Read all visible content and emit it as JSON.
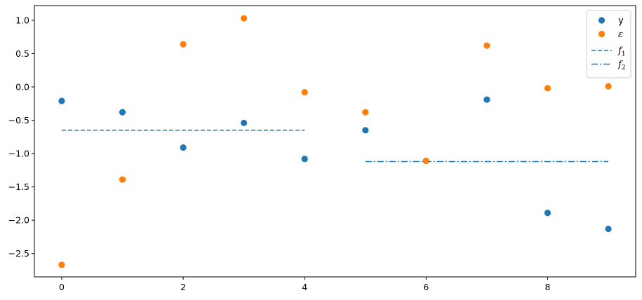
{
  "chart_data": {
    "type": "scatter",
    "title": "",
    "xlabel": "",
    "ylabel": "",
    "xlim": [
      -0.45,
      9.45
    ],
    "ylim": [
      -2.85,
      1.22
    ],
    "xticks": [
      0,
      2,
      4,
      6,
      8
    ],
    "yticks": [
      1.0,
      0.5,
      0.0,
      -0.5,
      -1.0,
      -1.5,
      -2.0,
      -2.5
    ],
    "xtick_labels": [
      "0",
      "2",
      "4",
      "6",
      "8"
    ],
    "ytick_labels": [
      "1.0",
      "0.5",
      "0.0",
      "−0.5",
      "−1.0",
      "−1.5",
      "−2.0",
      "−2.5"
    ],
    "grid": false,
    "legend_position": "top-right",
    "series": [
      {
        "name": "y",
        "kind": "scatter",
        "color": "#1f77b4",
        "x": [
          0,
          1,
          2,
          3,
          4,
          5,
          6,
          7,
          8,
          9
        ],
        "y": [
          -0.21,
          -0.38,
          -0.91,
          -0.54,
          -1.08,
          -0.65,
          -1.11,
          -0.19,
          -1.89,
          -2.13
        ]
      },
      {
        "name": "ε",
        "kind": "scatter",
        "color": "#ff7f0e",
        "x": [
          0,
          1,
          2,
          3,
          4,
          5,
          6,
          7,
          8,
          9
        ],
        "y": [
          -2.67,
          -1.39,
          0.64,
          1.03,
          -0.08,
          -0.38,
          -1.11,
          0.62,
          -0.02,
          0.01
        ]
      },
      {
        "name": "f",
        "subscript": "1",
        "kind": "line",
        "dash": "dashed",
        "color": "#1f77b4",
        "x": [
          0,
          4
        ],
        "y": [
          -0.65,
          -0.65
        ]
      },
      {
        "name": "f",
        "subscript": "2",
        "kind": "line",
        "dash": "dashdot",
        "color": "#1f77b4",
        "x": [
          5,
          9
        ],
        "y": [
          -1.12,
          -1.12
        ]
      }
    ]
  }
}
